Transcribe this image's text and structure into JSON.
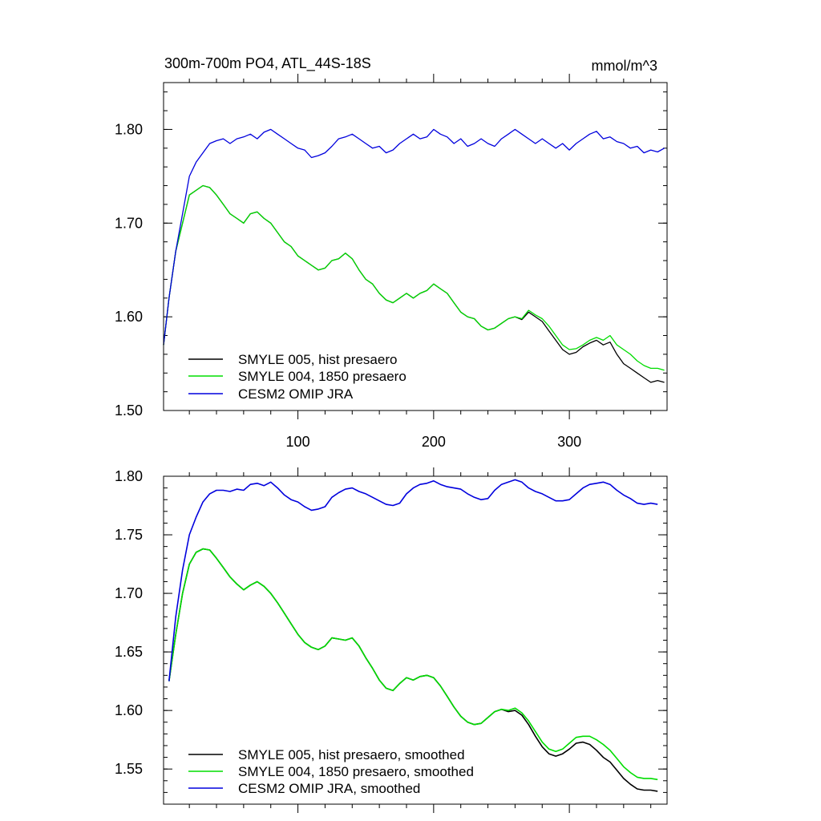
{
  "chart_data": [
    {
      "type": "line",
      "title": "300m-700m PO4, ATL_44S-18S",
      "units": "mmol/m^3",
      "xlim": [
        1,
        372
      ],
      "ylim": [
        1.5,
        1.85
      ],
      "x_ticks": [
        100,
        200,
        300
      ],
      "x_tick_labels": [
        "100",
        "200",
        "300"
      ],
      "y_ticks": [
        1.5,
        1.6,
        1.7,
        1.8
      ],
      "y_tick_labels": [
        "1.50",
        "1.60",
        "1.70",
        "1.80"
      ],
      "legend_position": "bottom-left",
      "series": [
        {
          "name": "SMYLE 005, hist presaero",
          "color": "#000000",
          "x": [
            1,
            5,
            10,
            15,
            20,
            25,
            30,
            35,
            40,
            45,
            50,
            55,
            60,
            65,
            70,
            75,
            80,
            85,
            90,
            95,
            100,
            105,
            110,
            115,
            120,
            125,
            130,
            135,
            140,
            145,
            150,
            155,
            160,
            165,
            170,
            175,
            180,
            185,
            190,
            195,
            200,
            205,
            210,
            215,
            220,
            225,
            230,
            235,
            240,
            245,
            250,
            255,
            260,
            265,
            270,
            275,
            280,
            285,
            290,
            295,
            300,
            305,
            310,
            315,
            320,
            325,
            330,
            335,
            340,
            345,
            350,
            355,
            360,
            365,
            370
          ],
          "y": [
            1.57,
            1.62,
            1.67,
            1.7,
            1.73,
            1.735,
            1.74,
            1.738,
            1.73,
            1.72,
            1.71,
            1.705,
            1.7,
            1.71,
            1.712,
            1.705,
            1.7,
            1.69,
            1.68,
            1.675,
            1.665,
            1.66,
            1.655,
            1.65,
            1.652,
            1.66,
            1.662,
            1.668,
            1.662,
            1.65,
            1.64,
            1.635,
            1.625,
            1.618,
            1.615,
            1.62,
            1.625,
            1.62,
            1.625,
            1.628,
            1.635,
            1.63,
            1.625,
            1.615,
            1.605,
            1.6,
            1.598,
            1.59,
            1.586,
            1.588,
            1.593,
            1.598,
            1.6,
            1.597,
            1.605,
            1.6,
            1.595,
            1.585,
            1.575,
            1.565,
            1.56,
            1.562,
            1.568,
            1.572,
            1.575,
            1.57,
            1.573,
            1.56,
            1.55,
            1.545,
            1.54,
            1.535,
            1.53,
            1.532,
            1.53
          ]
        },
        {
          "name": "SMYLE 004, 1850 presaero",
          "color": "#00dd00",
          "x": [
            1,
            5,
            10,
            15,
            20,
            25,
            30,
            35,
            40,
            45,
            50,
            55,
            60,
            65,
            70,
            75,
            80,
            85,
            90,
            95,
            100,
            105,
            110,
            115,
            120,
            125,
            130,
            135,
            140,
            145,
            150,
            155,
            160,
            165,
            170,
            175,
            180,
            185,
            190,
            195,
            200,
            205,
            210,
            215,
            220,
            225,
            230,
            235,
            240,
            245,
            250,
            255,
            260,
            265,
            270,
            275,
            280,
            285,
            290,
            295,
            300,
            305,
            310,
            315,
            320,
            325,
            330,
            335,
            340,
            345,
            350,
            355,
            360,
            365,
            370
          ],
          "y": [
            1.57,
            1.62,
            1.67,
            1.7,
            1.73,
            1.735,
            1.74,
            1.738,
            1.73,
            1.72,
            1.71,
            1.705,
            1.7,
            1.71,
            1.712,
            1.705,
            1.7,
            1.69,
            1.68,
            1.675,
            1.665,
            1.66,
            1.655,
            1.65,
            1.652,
            1.66,
            1.662,
            1.668,
            1.662,
            1.65,
            1.64,
            1.635,
            1.625,
            1.618,
            1.615,
            1.62,
            1.625,
            1.62,
            1.625,
            1.628,
            1.635,
            1.63,
            1.625,
            1.615,
            1.605,
            1.6,
            1.598,
            1.59,
            1.586,
            1.588,
            1.593,
            1.598,
            1.6,
            1.598,
            1.607,
            1.602,
            1.598,
            1.59,
            1.58,
            1.57,
            1.565,
            1.566,
            1.57,
            1.575,
            1.578,
            1.575,
            1.58,
            1.57,
            1.565,
            1.56,
            1.553,
            1.548,
            1.545,
            1.545,
            1.543
          ]
        },
        {
          "name": "CESM2 OMIP JRA",
          "color": "#0000dd",
          "x": [
            1,
            5,
            10,
            15,
            20,
            25,
            30,
            35,
            40,
            45,
            50,
            55,
            60,
            65,
            70,
            75,
            80,
            85,
            90,
            95,
            100,
            105,
            110,
            115,
            120,
            125,
            130,
            135,
            140,
            145,
            150,
            155,
            160,
            165,
            170,
            175,
            180,
            185,
            190,
            195,
            200,
            205,
            210,
            215,
            220,
            225,
            230,
            235,
            240,
            245,
            250,
            255,
            260,
            265,
            270,
            275,
            280,
            285,
            290,
            295,
            300,
            305,
            310,
            315,
            320,
            325,
            330,
            335,
            340,
            345,
            350,
            355,
            360,
            365,
            370
          ],
          "y": [
            1.57,
            1.62,
            1.67,
            1.71,
            1.75,
            1.765,
            1.775,
            1.785,
            1.788,
            1.79,
            1.785,
            1.79,
            1.792,
            1.795,
            1.79,
            1.797,
            1.8,
            1.795,
            1.79,
            1.785,
            1.78,
            1.778,
            1.77,
            1.772,
            1.775,
            1.782,
            1.79,
            1.792,
            1.795,
            1.79,
            1.785,
            1.78,
            1.782,
            1.775,
            1.778,
            1.785,
            1.79,
            1.795,
            1.79,
            1.792,
            1.8,
            1.795,
            1.792,
            1.785,
            1.79,
            1.782,
            1.785,
            1.79,
            1.785,
            1.782,
            1.79,
            1.795,
            1.8,
            1.795,
            1.79,
            1.785,
            1.79,
            1.785,
            1.78,
            1.785,
            1.778,
            1.785,
            1.79,
            1.795,
            1.798,
            1.79,
            1.792,
            1.787,
            1.785,
            1.78,
            1.782,
            1.775,
            1.778,
            1.776,
            1.78
          ]
        }
      ]
    },
    {
      "type": "line",
      "title": "",
      "xlim": [
        1,
        372
      ],
      "ylim": [
        1.52,
        1.8
      ],
      "x_ticks": [
        100,
        200,
        300
      ],
      "y_ticks": [
        1.55,
        1.6,
        1.65,
        1.7,
        1.75,
        1.8
      ],
      "y_tick_labels": [
        "1.55",
        "1.60",
        "1.65",
        "1.70",
        "1.75",
        "1.80"
      ],
      "legend_position": "bottom-left",
      "series": [
        {
          "name": "SMYLE 005, hist presaero, smoothed",
          "color": "#000000",
          "x": [
            5,
            10,
            15,
            20,
            25,
            30,
            35,
            40,
            45,
            50,
            55,
            60,
            65,
            70,
            75,
            80,
            85,
            90,
            95,
            100,
            105,
            110,
            115,
            120,
            125,
            130,
            135,
            140,
            145,
            150,
            155,
            160,
            165,
            170,
            175,
            180,
            185,
            190,
            195,
            200,
            205,
            210,
            215,
            220,
            225,
            230,
            235,
            240,
            245,
            250,
            255,
            260,
            265,
            270,
            275,
            280,
            285,
            290,
            295,
            300,
            305,
            310,
            315,
            320,
            325,
            330,
            335,
            340,
            345,
            350,
            355,
            360,
            365
          ],
          "y": [
            1.625,
            1.665,
            1.7,
            1.725,
            1.735,
            1.738,
            1.737,
            1.73,
            1.722,
            1.714,
            1.708,
            1.703,
            1.707,
            1.71,
            1.706,
            1.7,
            1.692,
            1.683,
            1.674,
            1.665,
            1.658,
            1.654,
            1.652,
            1.655,
            1.662,
            1.661,
            1.66,
            1.662,
            1.655,
            1.645,
            1.636,
            1.626,
            1.619,
            1.617,
            1.623,
            1.628,
            1.626,
            1.629,
            1.63,
            1.628,
            1.621,
            1.612,
            1.603,
            1.595,
            1.59,
            1.588,
            1.589,
            1.594,
            1.599,
            1.601,
            1.599,
            1.6,
            1.596,
            1.588,
            1.578,
            1.569,
            1.563,
            1.561,
            1.563,
            1.567,
            1.572,
            1.573,
            1.571,
            1.566,
            1.56,
            1.556,
            1.549,
            1.542,
            1.537,
            1.533,
            1.532,
            1.532,
            1.531
          ]
        },
        {
          "name": "SMYLE 004, 1850 presaero, smoothed",
          "color": "#00dd00",
          "x": [
            5,
            10,
            15,
            20,
            25,
            30,
            35,
            40,
            45,
            50,
            55,
            60,
            65,
            70,
            75,
            80,
            85,
            90,
            95,
            100,
            105,
            110,
            115,
            120,
            125,
            130,
            135,
            140,
            145,
            150,
            155,
            160,
            165,
            170,
            175,
            180,
            185,
            190,
            195,
            200,
            205,
            210,
            215,
            220,
            225,
            230,
            235,
            240,
            245,
            250,
            255,
            260,
            265,
            270,
            275,
            280,
            285,
            290,
            295,
            300,
            305,
            310,
            315,
            320,
            325,
            330,
            335,
            340,
            345,
            350,
            355,
            360,
            365
          ],
          "y": [
            1.625,
            1.665,
            1.7,
            1.725,
            1.735,
            1.738,
            1.737,
            1.73,
            1.722,
            1.714,
            1.708,
            1.703,
            1.707,
            1.71,
            1.706,
            1.7,
            1.692,
            1.683,
            1.674,
            1.665,
            1.658,
            1.654,
            1.652,
            1.655,
            1.662,
            1.661,
            1.66,
            1.662,
            1.655,
            1.645,
            1.636,
            1.626,
            1.619,
            1.617,
            1.623,
            1.628,
            1.626,
            1.629,
            1.63,
            1.628,
            1.621,
            1.612,
            1.603,
            1.595,
            1.59,
            1.588,
            1.589,
            1.594,
            1.599,
            1.601,
            1.6,
            1.602,
            1.598,
            1.591,
            1.582,
            1.573,
            1.567,
            1.565,
            1.567,
            1.572,
            1.577,
            1.578,
            1.578,
            1.575,
            1.571,
            1.566,
            1.559,
            1.552,
            1.547,
            1.543,
            1.542,
            1.542,
            1.541
          ]
        },
        {
          "name": "CESM2 OMIP JRA, smoothed",
          "color": "#0000dd",
          "x": [
            5,
            10,
            15,
            20,
            25,
            30,
            35,
            40,
            45,
            50,
            55,
            60,
            65,
            70,
            75,
            80,
            85,
            90,
            95,
            100,
            105,
            110,
            115,
            120,
            125,
            130,
            135,
            140,
            145,
            150,
            155,
            160,
            165,
            170,
            175,
            180,
            185,
            190,
            195,
            200,
            205,
            210,
            215,
            220,
            225,
            230,
            235,
            240,
            245,
            250,
            255,
            260,
            265,
            270,
            275,
            280,
            285,
            290,
            295,
            300,
            305,
            310,
            315,
            320,
            325,
            330,
            335,
            340,
            345,
            350,
            355,
            360,
            365
          ],
          "y": [
            1.625,
            1.68,
            1.72,
            1.75,
            1.765,
            1.778,
            1.785,
            1.788,
            1.788,
            1.787,
            1.789,
            1.788,
            1.793,
            1.794,
            1.792,
            1.795,
            1.79,
            1.784,
            1.78,
            1.778,
            1.774,
            1.771,
            1.772,
            1.774,
            1.782,
            1.786,
            1.789,
            1.79,
            1.787,
            1.785,
            1.782,
            1.779,
            1.776,
            1.775,
            1.777,
            1.785,
            1.79,
            1.793,
            1.794,
            1.796,
            1.793,
            1.791,
            1.79,
            1.789,
            1.785,
            1.782,
            1.78,
            1.781,
            1.788,
            1.793,
            1.795,
            1.797,
            1.795,
            1.79,
            1.787,
            1.785,
            1.782,
            1.779,
            1.779,
            1.78,
            1.785,
            1.79,
            1.793,
            1.794,
            1.795,
            1.793,
            1.788,
            1.784,
            1.781,
            1.777,
            1.776,
            1.777,
            1.776
          ]
        }
      ]
    }
  ]
}
